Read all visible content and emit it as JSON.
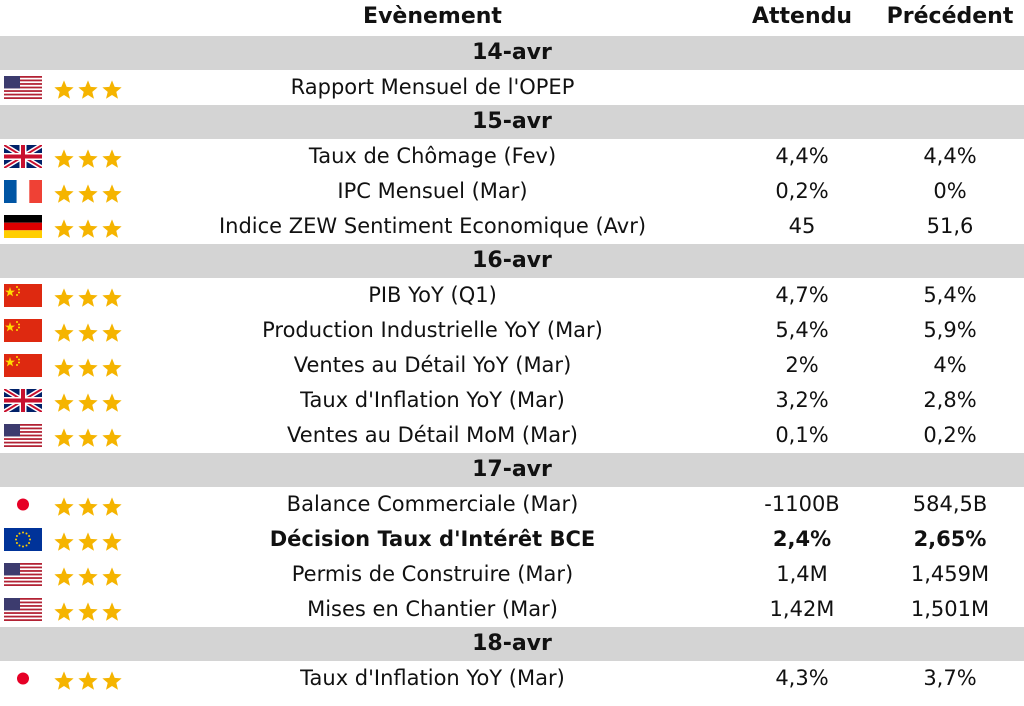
{
  "header": {
    "event": "Evènement",
    "expected": "Attendu",
    "previous": "Précédent"
  },
  "colors": {
    "date_band": "#d4d4d4",
    "star": "#f5b400"
  },
  "groups": [
    {
      "date": "14-avr",
      "rows": [
        {
          "flag": "us-flag-icon",
          "event": "Rapport Mensuel de l'OPEP",
          "expected": "",
          "previous": ""
        }
      ]
    },
    {
      "date": "15-avr",
      "rows": [
        {
          "flag": "uk-flag-icon",
          "event": "Taux de Chômage (Fev)",
          "expected": "4,4%",
          "previous": "4,4%"
        },
        {
          "flag": "fr-flag-icon",
          "event": "IPC Mensuel (Mar)",
          "expected": "0,2%",
          "previous": "0%"
        },
        {
          "flag": "de-flag-icon",
          "event": "Indice ZEW Sentiment Economique (Avr)",
          "expected": "45",
          "previous": "51,6"
        }
      ]
    },
    {
      "date": "16-avr",
      "rows": [
        {
          "flag": "cn-flag-icon",
          "event": "PIB YoY (Q1)",
          "expected": "4,7%",
          "previous": "5,4%"
        },
        {
          "flag": "cn-flag-icon",
          "event": "Production Industrielle YoY (Mar)",
          "expected": "5,4%",
          "previous": "5,9%"
        },
        {
          "flag": "cn-flag-icon",
          "event": "Ventes au Détail YoY (Mar)",
          "expected": "2%",
          "previous": "4%"
        },
        {
          "flag": "uk-flag-icon",
          "event": "Taux d'Inflation YoY (Mar)",
          "expected": "3,2%",
          "previous": "2,8%"
        },
        {
          "flag": "us-flag-icon",
          "event": "Ventes au Détail MoM (Mar)",
          "expected": "0,1%",
          "previous": "0,2%"
        }
      ]
    },
    {
      "date": "17-avr",
      "rows": [
        {
          "flag": "jp-flag-icon",
          "event": "Balance Commerciale (Mar)",
          "expected": "-1100B",
          "previous": "584,5B"
        },
        {
          "flag": "eu-flag-icon",
          "event": "Décision Taux d'Intérêt BCE",
          "expected": "2,4%",
          "previous": "2,65%",
          "bold": true
        },
        {
          "flag": "us-flag-icon",
          "event": "Permis de Construire (Mar)",
          "expected": "1,4M",
          "previous": "1,459M"
        },
        {
          "flag": "us-flag-icon",
          "event": "Mises en Chantier (Mar)",
          "expected": "1,42M",
          "previous": "1,501M"
        }
      ]
    },
    {
      "date": "18-avr",
      "rows": [
        {
          "flag": "jp-flag-icon",
          "event": "Taux d'Inflation YoY (Mar)",
          "expected": "4,3%",
          "previous": "3,7%"
        }
      ]
    }
  ]
}
